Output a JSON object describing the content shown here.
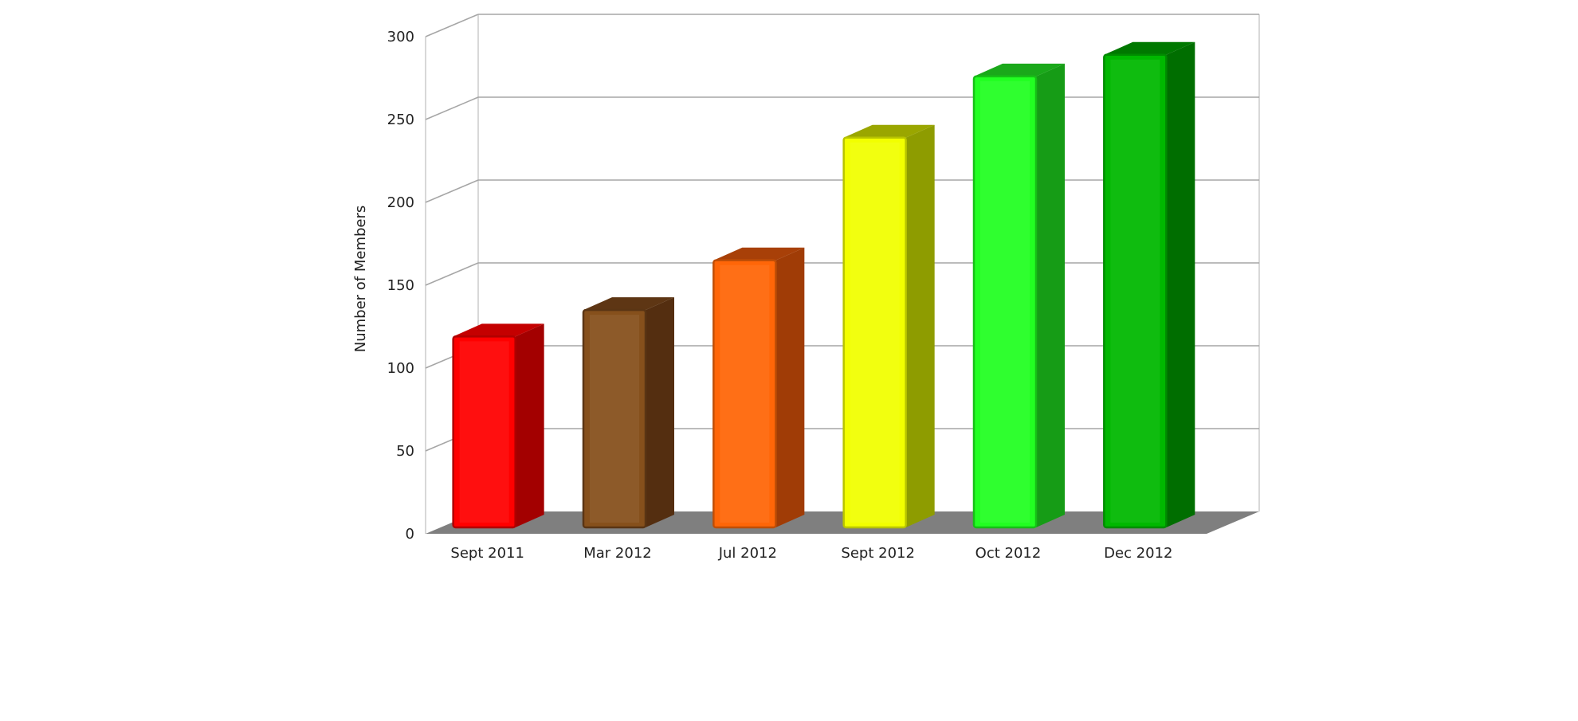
{
  "chart_data": {
    "type": "bar",
    "categories": [
      "Sept 2011",
      "Mar 2012",
      "Jul 2012",
      "Sept 2012",
      "Oct 2012",
      "Dec 2012"
    ],
    "values": [
      120,
      136,
      166,
      240,
      277,
      290
    ],
    "bar_colors": [
      {
        "front": "#ff0000",
        "side": "#a30000",
        "top": "#c40000",
        "edge": "#b00000"
      },
      {
        "front": "#86501c",
        "side": "#542e10",
        "top": "#5e3614",
        "edge": "#5a3514"
      },
      {
        "front": "#ff6608",
        "side": "#a03c06",
        "top": "#a84008",
        "edge": "#c04e06"
      },
      {
        "front": "#f2ff00",
        "side": "#8e9c00",
        "top": "#9aa600",
        "edge": "#b8c400"
      },
      {
        "front": "#22ff22",
        "side": "#169c16",
        "top": "#1aa81a",
        "edge": "#16c016"
      },
      {
        "front": "#00b800",
        "side": "#006e00",
        "top": "#007800",
        "edge": "#008c00"
      }
    ],
    "xlabel": "",
    "ylabel": "Number of Members",
    "ylim": [
      0,
      300
    ],
    "yticks": [
      0,
      50,
      100,
      150,
      200,
      250,
      300
    ],
    "grid": true,
    "legend": false,
    "floor_color": "#7f7f7f"
  }
}
